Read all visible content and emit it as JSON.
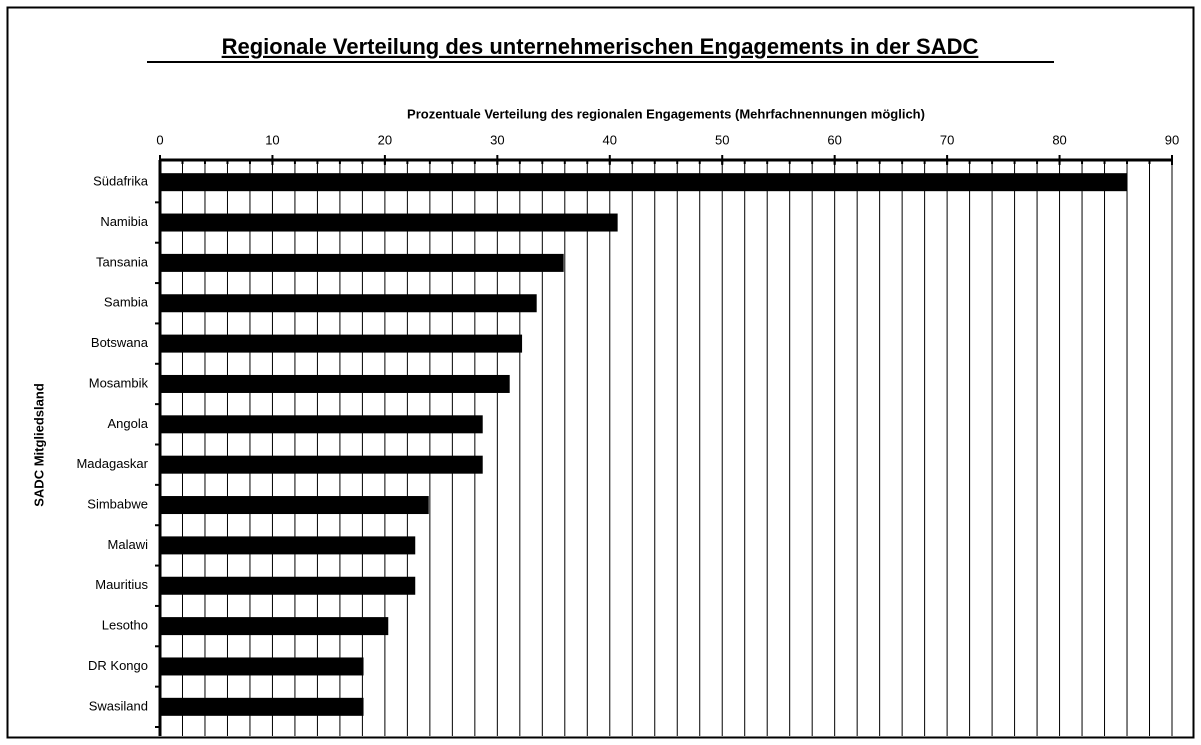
{
  "chart_data": {
    "type": "barh",
    "title": "Regionale Verteilung des unternehmerischen Engagements in der SADC",
    "x_label": "Prozentuale Verteilung des regionalen Engagements (Mehrfachnennungen möglich)",
    "y_label": "SADC Mitgliedsland",
    "categories": [
      "Südafrika",
      "Namibia",
      "Tansania",
      "Sambia",
      "Botswana",
      "Mosambik",
      "Angola",
      "Madagaskar",
      "Simbabwe",
      "Malawi",
      "Mauritius",
      "Lesotho",
      "DR Kongo",
      "Swasiland"
    ],
    "values": [
      86,
      40.7,
      35.9,
      33.5,
      32.2,
      31.1,
      28.7,
      28.7,
      23.9,
      22.7,
      22.7,
      20.3,
      18.1,
      18.1
    ],
    "color": "#000000",
    "xlim": [
      0,
      90
    ],
    "xticks": [
      0,
      10,
      20,
      30,
      40,
      50,
      60,
      70,
      80,
      90
    ],
    "minor_xticks": [
      0,
      2,
      4,
      6,
      8,
      10,
      12,
      14,
      16,
      18,
      20,
      22,
      24,
      26,
      28,
      30,
      32,
      34,
      36,
      38,
      40,
      42,
      44,
      46,
      48,
      50,
      52,
      54,
      56,
      58,
      60,
      62,
      64,
      66,
      68,
      70,
      72,
      74,
      76,
      78,
      80,
      82,
      84,
      86,
      88,
      90
    ],
    "grid": true,
    "x_axis_position": "top"
  }
}
